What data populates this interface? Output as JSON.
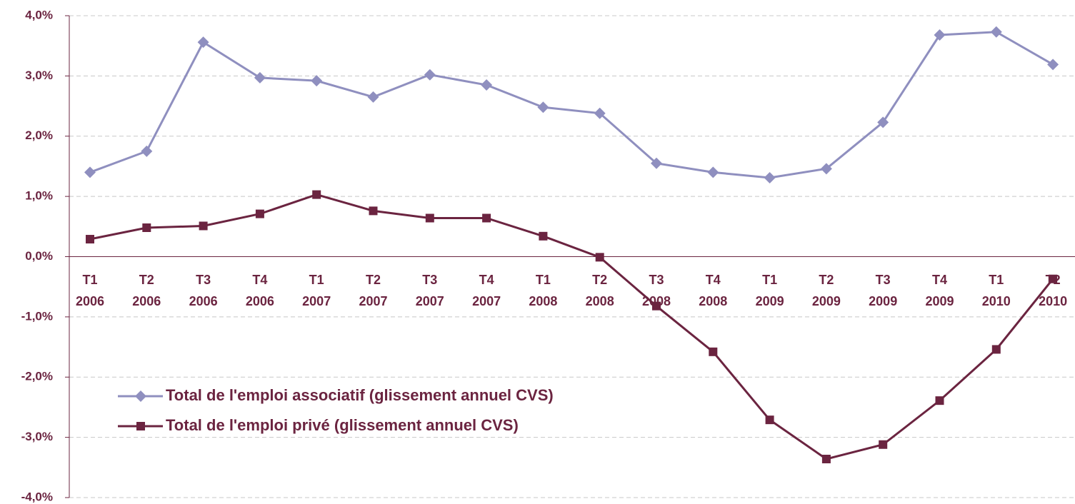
{
  "chart_data": {
    "type": "line",
    "categories": [
      "T1 2006",
      "T2 2006",
      "T3 2006",
      "T4 2006",
      "T1 2007",
      "T2 2007",
      "T3 2007",
      "T4 2007",
      "T1 2008",
      "T2 2008",
      "T3 2008",
      "T4 2008",
      "T1 2009",
      "T2 2009",
      "T3 2009",
      "T4 2009",
      "T1 2010",
      "T2 2010"
    ],
    "series": [
      {
        "name": "Total de l'emploi associatif (glissement annuel CVS)",
        "color": "#8f8fbf",
        "marker": "diamond",
        "values": [
          1.4,
          1.75,
          3.56,
          2.97,
          2.92,
          2.65,
          3.02,
          2.85,
          2.48,
          2.38,
          1.55,
          1.4,
          1.31,
          1.46,
          2.23,
          3.68,
          3.73,
          3.19
        ]
      },
      {
        "name": "Total de l'emploi privé (glissement annuel CVS)",
        "color": "#6b2440",
        "marker": "square",
        "values": [
          0.29,
          0.48,
          0.51,
          0.71,
          1.03,
          0.76,
          0.64,
          0.64,
          0.34,
          -0.01,
          -0.82,
          -1.58,
          -2.71,
          -3.36,
          -3.12,
          -2.39,
          -1.54,
          -0.37
        ]
      }
    ],
    "ylim": [
      -4,
      4
    ],
    "yticks": [
      {
        "value": -4,
        "label": "-4,0%"
      },
      {
        "value": -3,
        "label": "-3,0%"
      },
      {
        "value": -2,
        "label": "-2,0%"
      },
      {
        "value": -1,
        "label": "-1,0%"
      },
      {
        "value": 0,
        "label": "0,0%"
      },
      {
        "value": 1,
        "label": "1,0%"
      },
      {
        "value": 2,
        "label": "2,0%"
      },
      {
        "value": 3,
        "label": "3,0%"
      },
      {
        "value": 4,
        "label": "4,0%"
      }
    ],
    "grid": true
  }
}
